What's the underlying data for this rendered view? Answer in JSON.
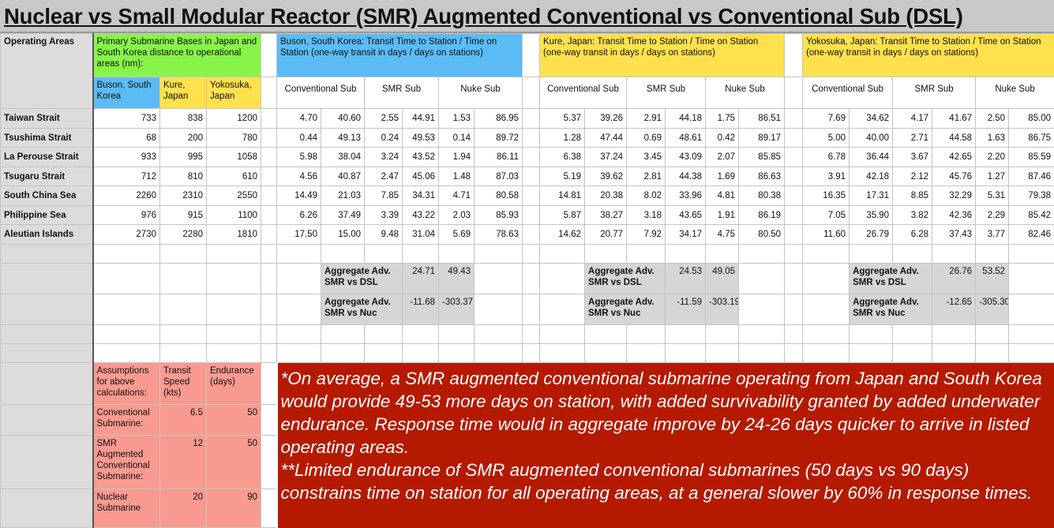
{
  "title": "Nuclear vs Small Modular Reactor (SMR) Augmented Conventional vs Conventional Sub (DSL)",
  "headers": {
    "operating_areas": "Operating Areas",
    "bases": "Primary Submarine Bases in Japan and South Korea distance to operational areas (nm):",
    "buson_col": "Buson, South Korea",
    "kure_col": "Kure, Japan",
    "yokosuka_col": "Yokosuka, Japan",
    "buson_group": "Buson, South Korea:  Transit Time to Station / Time on Station (one-way transit in days / days on stations)",
    "kure_group": "Kure, Japan:  Transit Time to Station / Time on Station (one-way transit in days / days on stations)",
    "yokosuka_group": "Yokosuka, Japan:  Transit Time to Station / Time on Station (one-way transit in days / days on stations)",
    "conv": "Conventional Sub",
    "smr": "SMR Sub",
    "nuke": "Nuke Sub"
  },
  "rows": [
    {
      "name": "Taiwan Strait",
      "dist": [
        "733",
        "838",
        "1200"
      ],
      "buson": [
        "4.70",
        "40.60",
        "2.55",
        "44.91",
        "1.53",
        "86.95"
      ],
      "kure": [
        "5.37",
        "39.26",
        "2.91",
        "44.18",
        "1.75",
        "86.51"
      ],
      "yokosuka": [
        "7.69",
        "34.62",
        "4.17",
        "41.67",
        "2.50",
        "85.00"
      ]
    },
    {
      "name": "Tsushima Strait",
      "dist": [
        "68",
        "200",
        "780"
      ],
      "buson": [
        "0.44",
        "49.13",
        "0.24",
        "49.53",
        "0.14",
        "89.72"
      ],
      "kure": [
        "1.28",
        "47.44",
        "0.69",
        "48.61",
        "0.42",
        "89.17"
      ],
      "yokosuka": [
        "5.00",
        "40.00",
        "2.71",
        "44.58",
        "1.63",
        "86.75"
      ]
    },
    {
      "name": "La Perouse Strait",
      "dist": [
        "933",
        "995",
        "1058"
      ],
      "buson": [
        "5.98",
        "38.04",
        "3.24",
        "43.52",
        "1.94",
        "86.11"
      ],
      "kure": [
        "6.38",
        "37.24",
        "3.45",
        "43.09",
        "2.07",
        "85.85"
      ],
      "yokosuka": [
        "6.78",
        "36.44",
        "3.67",
        "42.65",
        "2.20",
        "85.59"
      ]
    },
    {
      "name": "Tsugaru Strait",
      "dist": [
        "712",
        "810",
        "610"
      ],
      "buson": [
        "4.56",
        "40.87",
        "2.47",
        "45.06",
        "1.48",
        "87.03"
      ],
      "kure": [
        "5.19",
        "39.62",
        "2.81",
        "44.38",
        "1.69",
        "86.63"
      ],
      "yokosuka": [
        "3.91",
        "42.18",
        "2.12",
        "45.76",
        "1.27",
        "87.46"
      ]
    },
    {
      "name": "South China Sea",
      "dist": [
        "2260",
        "2310",
        "2550"
      ],
      "buson": [
        "14.49",
        "21.03",
        "7.85",
        "34.31",
        "4.71",
        "80.58"
      ],
      "kure": [
        "14.81",
        "20.38",
        "8.02",
        "33.96",
        "4.81",
        "80.38"
      ],
      "yokosuka": [
        "16.35",
        "17.31",
        "8.85",
        "32.29",
        "5.31",
        "79.38"
      ]
    },
    {
      "name": "Philippine Sea",
      "dist": [
        "976",
        "915",
        "1100"
      ],
      "buson": [
        "6.26",
        "37.49",
        "3.39",
        "43.22",
        "2.03",
        "85.93"
      ],
      "kure": [
        "5.87",
        "38.27",
        "3.18",
        "43.65",
        "1.91",
        "86.19"
      ],
      "yokosuka": [
        "7.05",
        "35.90",
        "3.82",
        "42.36",
        "2.29",
        "85.42"
      ]
    },
    {
      "name": "Aleutian Islands",
      "dist": [
        "2730",
        "2280",
        "1810"
      ],
      "buson": [
        "17.50",
        "15.00",
        "9.48",
        "31.04",
        "5.69",
        "78.63"
      ],
      "kure": [
        "14.62",
        "20.77",
        "7.92",
        "34.17",
        "4.75",
        "80.50"
      ],
      "yokosuka": [
        "11.60",
        "26.79",
        "6.28",
        "37.43",
        "3.77",
        "82.46"
      ]
    }
  ],
  "aggregate": {
    "dsl_label": "Aggregate Adv. SMR vs DSL",
    "nuc_label": "Aggregate Adv. SMR vs Nuc",
    "buson": {
      "dsl": [
        "24.71",
        "49.43"
      ],
      "nuc": [
        "-11.68",
        "-303.37"
      ]
    },
    "kure": {
      "dsl": [
        "24.53",
        "49.05"
      ],
      "nuc": [
        "-11.59",
        "-303.19"
      ]
    },
    "yokosuka": {
      "dsl": [
        "26.76",
        "53.52"
      ],
      "nuc": [
        "-12.65",
        "-305.30"
      ]
    }
  },
  "assumptions": {
    "header": "Assumptions for above calculations:",
    "speed_header": "Transit Speed (kts)",
    "endurance_header": "Endurance (days)",
    "items": [
      {
        "label": "Conventional Submarine:",
        "speed": "6.5",
        "endurance": "50"
      },
      {
        "label": "SMR Augmented Conventional Submarine:",
        "speed": "12",
        "endurance": "50"
      },
      {
        "label": "Nuclear Submarine",
        "speed": "20",
        "endurance": "90"
      }
    ]
  },
  "note": {
    "line1": "*On average, a SMR augmented conventional submarine operating from Japan and South Korea would provide 49-53 more days on station, with added survivability granted by added underwater endurance. Response time would in aggregate improve by 24-26 days quicker to arrive in listed operating areas.",
    "line2": "**Limited endurance of SMR augmented conventional submarines (50 days vs 90 days) constrains time on station for all operating areas, at a general slower by 60% in response times."
  },
  "colors": {
    "green": "#88f44a",
    "blue": "#5bbcf5",
    "yellow": "#ffe14d",
    "pink": "#f99a90",
    "note": "#b51a00"
  }
}
